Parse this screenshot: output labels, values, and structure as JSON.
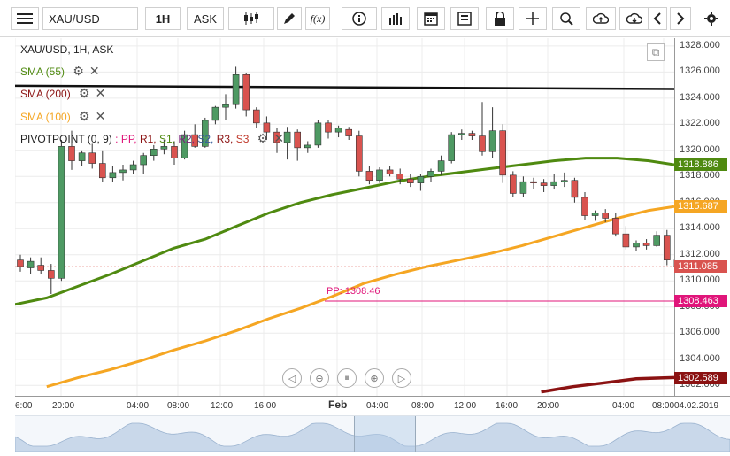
{
  "toolbar": {
    "symbol": "XAU/USD",
    "timeframe": "1H",
    "price_side": "ASK",
    "icons": [
      "menu-icon",
      "candlestick-icon",
      "draw-pencil-icon",
      "function-icon",
      "info-icon",
      "bar-chart-icon",
      "calendar-icon",
      "list-icon",
      "lock-icon",
      "crosshair-icon",
      "zoom-icon",
      "cloud-upload-icon",
      "cloud-download-icon",
      "arrow-left-icon",
      "arrow-right-icon",
      "gear-icon"
    ],
    "fx_label": "f(x)"
  },
  "chart_header": "XAU/USD, 1H, ASK",
  "legend": {
    "sma55": {
      "label": "SMA (55)",
      "color": "#4f8a10"
    },
    "sma200": {
      "label": "SMA (200)",
      "color": "#8b1212"
    },
    "sma100": {
      "label": "SMA (100)",
      "color": "#f5a623"
    },
    "pivot_prefix": "PIVOTPOINT (0, 9)",
    "pivot_items": [
      {
        "text": ": PP,",
        "color": "#e0157a"
      },
      {
        "text": " R1,",
        "color": "#8b1212"
      },
      {
        "text": " S1,",
        "color": "#4f8a10"
      },
      {
        "text": " R2,",
        "color": "#7a1f7a"
      },
      {
        "text": " S2,",
        "color": "#355e9a"
      },
      {
        "text": " R3,",
        "color": "#8b1212"
      },
      {
        "text": " S3",
        "color": "#c0392b"
      }
    ]
  },
  "pp_label": "PP: 1308.46",
  "price_axis": [
    "1328.000",
    "1326.000",
    "1324.000",
    "1322.000",
    "1320.000",
    "1318.000",
    "1316.000",
    "1314.000",
    "1312.000",
    "1310.000",
    "1308.000",
    "1306.000",
    "1304.000",
    "1302.000"
  ],
  "time_axis": [
    "6:00",
    "20:00",
    "04:00",
    "08:00",
    "12:00",
    "16:00",
    "Feb",
    "04:00",
    "08:00",
    "12:00",
    "16:00",
    "20:00",
    "04:00",
    "08:00",
    "04.02.2019"
  ],
  "price_tags": [
    {
      "value": "1318.886",
      "color": "#4f8a10"
    },
    {
      "value": "1315.687",
      "color": "#f5a623"
    },
    {
      "value": "1311.085",
      "color": "#d9534f"
    },
    {
      "value": "1308.463",
      "color": "#e0157a"
    },
    {
      "value": "1302.589",
      "color": "#8b1212"
    }
  ],
  "nav_controls": [
    "pan-left-icon",
    "zoom-out-icon",
    "reset-icon",
    "zoom-in-icon",
    "pan-right-icon"
  ],
  "chart_data": {
    "type": "candlestick",
    "title": "XAU/USD, 1H, ASK",
    "ylim": [
      1301.2,
      1328.6
    ],
    "candles": [
      [
        1311.6,
        1312.0,
        1310.7,
        1311.1
      ],
      [
        1311.0,
        1311.8,
        1310.5,
        1311.5
      ],
      [
        1311.2,
        1311.8,
        1310.5,
        1310.8
      ],
      [
        1310.8,
        1311.3,
        1309.0,
        1310.2
      ],
      [
        1310.2,
        1320.8,
        1310.0,
        1320.3
      ],
      [
        1320.3,
        1321.5,
        1318.5,
        1319.2
      ],
      [
        1319.2,
        1320.0,
        1318.8,
        1319.8
      ],
      [
        1319.8,
        1320.5,
        1318.6,
        1319.0
      ],
      [
        1319.0,
        1320.0,
        1317.6,
        1317.9
      ],
      [
        1317.9,
        1318.8,
        1317.6,
        1318.3
      ],
      [
        1318.3,
        1318.9,
        1317.7,
        1318.5
      ],
      [
        1318.5,
        1319.2,
        1318.2,
        1318.9
      ],
      [
        1318.9,
        1319.8,
        1318.2,
        1319.6
      ],
      [
        1319.6,
        1320.4,
        1319.2,
        1320.1
      ],
      [
        1320.1,
        1320.8,
        1319.7,
        1320.3
      ],
      [
        1320.3,
        1320.7,
        1318.9,
        1319.4
      ],
      [
        1319.4,
        1321.5,
        1319.3,
        1321.2
      ],
      [
        1321.2,
        1322.0,
        1320.2,
        1320.3
      ],
      [
        1320.3,
        1322.5,
        1320.2,
        1322.3
      ],
      [
        1322.3,
        1323.4,
        1322.0,
        1323.3
      ],
      [
        1323.3,
        1324.3,
        1322.3,
        1323.5
      ],
      [
        1323.5,
        1326.4,
        1323.2,
        1325.8
      ],
      [
        1325.8,
        1325.9,
        1322.6,
        1323.1
      ],
      [
        1323.1,
        1323.3,
        1321.7,
        1322.1
      ],
      [
        1322.1,
        1322.6,
        1320.8,
        1321.4
      ],
      [
        1321.4,
        1321.7,
        1319.8,
        1320.6
      ],
      [
        1320.6,
        1321.8,
        1319.3,
        1321.4
      ],
      [
        1321.4,
        1321.6,
        1319.2,
        1320.2
      ],
      [
        1320.2,
        1320.7,
        1319.8,
        1320.4
      ],
      [
        1320.4,
        1322.3,
        1320.2,
        1322.1
      ],
      [
        1322.1,
        1322.3,
        1320.9,
        1321.4
      ],
      [
        1321.4,
        1321.9,
        1321.0,
        1321.7
      ],
      [
        1321.6,
        1321.8,
        1320.8,
        1321.1
      ],
      [
        1321.1,
        1321.5,
        1318.0,
        1318.4
      ],
      [
        1318.4,
        1318.8,
        1317.4,
        1317.7
      ],
      [
        1317.7,
        1318.7,
        1317.5,
        1318.5
      ],
      [
        1318.5,
        1318.8,
        1318.0,
        1318.2
      ],
      [
        1318.2,
        1318.6,
        1317.4,
        1317.8
      ],
      [
        1317.8,
        1318.2,
        1317.2,
        1317.5
      ],
      [
        1317.5,
        1318.2,
        1316.9,
        1318.0
      ],
      [
        1318.0,
        1318.6,
        1317.6,
        1318.4
      ],
      [
        1318.4,
        1319.6,
        1318.1,
        1319.2
      ],
      [
        1319.2,
        1321.4,
        1319.0,
        1321.2
      ],
      [
        1321.2,
        1321.6,
        1320.8,
        1321.3
      ],
      [
        1321.3,
        1321.5,
        1320.8,
        1321.1
      ],
      [
        1321.1,
        1323.7,
        1319.6,
        1319.9
      ],
      [
        1319.9,
        1323.3,
        1319.4,
        1321.5
      ],
      [
        1321.5,
        1322.0,
        1317.5,
        1318.1
      ],
      [
        1318.1,
        1318.4,
        1316.4,
        1316.7
      ],
      [
        1316.7,
        1318.0,
        1316.4,
        1317.6
      ],
      [
        1317.6,
        1317.9,
        1317.0,
        1317.5
      ],
      [
        1317.5,
        1317.8,
        1316.8,
        1317.3
      ],
      [
        1317.3,
        1318.2,
        1317.0,
        1317.6
      ],
      [
        1317.6,
        1318.3,
        1317.2,
        1317.7
      ],
      [
        1317.7,
        1317.9,
        1316.0,
        1316.4
      ],
      [
        1316.4,
        1316.8,
        1314.7,
        1315.0
      ],
      [
        1315.0,
        1315.4,
        1314.6,
        1315.2
      ],
      [
        1315.2,
        1315.5,
        1314.5,
        1314.8
      ],
      [
        1314.8,
        1315.2,
        1313.4,
        1313.6
      ],
      [
        1313.6,
        1314.2,
        1312.4,
        1312.6
      ],
      [
        1312.6,
        1313.1,
        1312.3,
        1312.9
      ],
      [
        1312.9,
        1313.2,
        1312.4,
        1312.7
      ],
      [
        1312.7,
        1313.8,
        1312.6,
        1313.5
      ],
      [
        1313.5,
        1313.9,
        1311.2,
        1311.6
      ],
      [
        1311.6,
        1312.2,
        1311.0,
        1311.1
      ]
    ],
    "sma55": [
      [
        0,
        1308.2
      ],
      [
        5,
        1308.7
      ],
      [
        10,
        1309.6
      ],
      [
        15,
        1310.5
      ],
      [
        20,
        1311.5
      ],
      [
        25,
        1312.5
      ],
      [
        30,
        1313.2
      ],
      [
        35,
        1314.2
      ],
      [
        40,
        1315.2
      ],
      [
        45,
        1316.0
      ],
      [
        50,
        1316.6
      ],
      [
        55,
        1317.1
      ],
      [
        60,
        1317.6
      ],
      [
        65,
        1318.0
      ],
      [
        70,
        1318.3
      ],
      [
        75,
        1318.6
      ],
      [
        80,
        1318.9
      ],
      [
        85,
        1319.2
      ],
      [
        90,
        1319.4
      ],
      [
        95,
        1319.4
      ],
      [
        100,
        1319.2
      ],
      [
        104,
        1318.9
      ]
    ],
    "sma100": [
      [
        5,
        1301.9
      ],
      [
        10,
        1302.6
      ],
      [
        15,
        1303.2
      ],
      [
        20,
        1303.9
      ],
      [
        25,
        1304.7
      ],
      [
        30,
        1305.4
      ],
      [
        35,
        1306.2
      ],
      [
        40,
        1307.1
      ],
      [
        45,
        1307.9
      ],
      [
        50,
        1308.8
      ],
      [
        55,
        1309.8
      ],
      [
        60,
        1310.5
      ],
      [
        65,
        1311.1
      ],
      [
        70,
        1311.6
      ],
      [
        75,
        1312.1
      ],
      [
        80,
        1312.7
      ],
      [
        85,
        1313.4
      ],
      [
        90,
        1314.1
      ],
      [
        95,
        1314.8
      ],
      [
        100,
        1315.4
      ],
      [
        104,
        1315.7
      ]
    ],
    "sma200": [
      [
        83,
        1301.5
      ],
      [
        88,
        1301.9
      ],
      [
        93,
        1302.2
      ],
      [
        98,
        1302.5
      ],
      [
        104,
        1302.6
      ]
    ],
    "resistance": 1324.8,
    "pivot_pp": 1308.46,
    "last_price": 1311.085
  }
}
